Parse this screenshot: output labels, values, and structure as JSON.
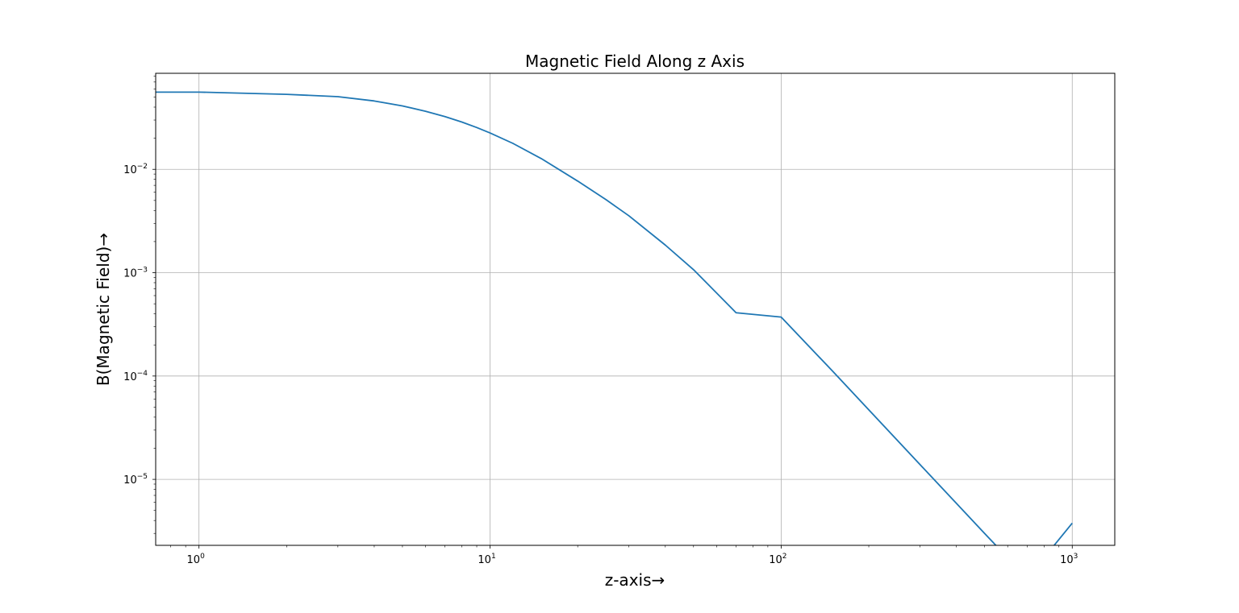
{
  "chart_data": {
    "type": "line",
    "title": "Magnetic Field Along z Axis",
    "xlabel": "z-axis→",
    "ylabel": "B(Magnetic Field)→",
    "xscale": "log",
    "yscale": "log",
    "xlim": [
      0.71,
      1400
    ],
    "ylim": [
      2.3e-06,
      0.085
    ],
    "grid": true,
    "legend": "none",
    "x_ticks": [
      {
        "value": 1,
        "base": "10",
        "exp": "0"
      },
      {
        "value": 10,
        "base": "10",
        "exp": "1"
      },
      {
        "value": 100,
        "base": "10",
        "exp": "2"
      },
      {
        "value": 1000,
        "base": "10",
        "exp": "3"
      }
    ],
    "y_ticks": [
      {
        "value": 0.01,
        "base": "10",
        "exp": "−2"
      },
      {
        "value": 0.001,
        "base": "10",
        "exp": "−3"
      },
      {
        "value": 0.0001,
        "base": "10",
        "exp": "−4"
      },
      {
        "value": 1e-05,
        "base": "10",
        "exp": "−5"
      }
    ],
    "series": [
      {
        "color": "#1f77b4",
        "x": [
          0,
          1,
          2,
          3,
          4,
          5,
          6,
          7,
          8,
          9,
          10,
          12,
          15,
          20,
          25,
          30,
          40,
          50,
          70,
          100,
          150,
          200,
          300,
          500,
          700,
          1000
        ],
        "y": [
          0.0559,
          0.0559,
          0.0532,
          0.0505,
          0.0459,
          0.0411,
          0.0365,
          0.0324,
          0.0287,
          0.0254,
          0.0225,
          0.0178,
          0.0127,
          0.0077,
          0.0051,
          0.00355,
          0.00185,
          0.00107,
          0.00041,
          0.000372,
          0.000112,
          4.71e-05,
          1.39e-05,
          3e-06,
          1.1e-06,
          3.77e-06
        ]
      }
    ]
  }
}
